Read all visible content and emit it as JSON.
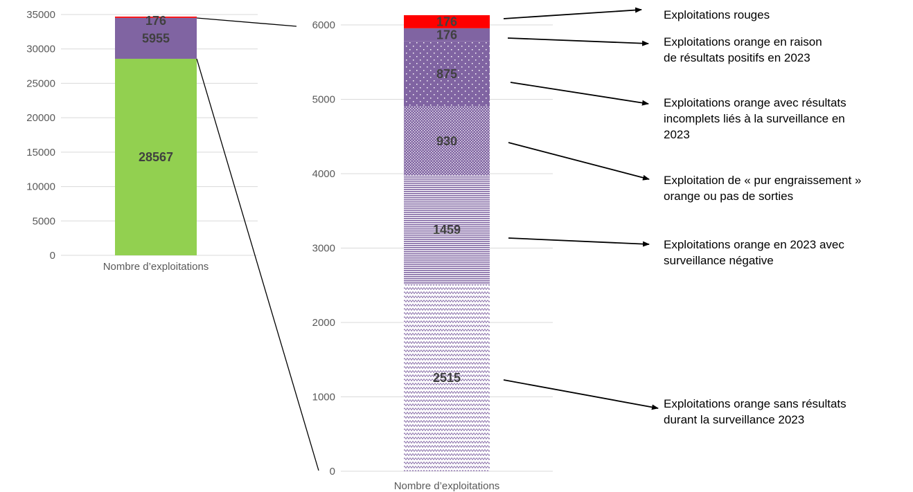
{
  "chart_data": [
    {
      "type": "bar",
      "stacked": true,
      "categories": [
        "Nombre d’exploitations"
      ],
      "ylim": [
        0,
        35000
      ],
      "yticks": [
        0,
        5000,
        10000,
        15000,
        20000,
        25000,
        30000,
        35000
      ],
      "grid": true,
      "series": [
        {
          "values": [
            28567
          ],
          "label": "28567",
          "color": "#92d050",
          "pattern": "solid"
        },
        {
          "values": [
            5955
          ],
          "label": "5955",
          "color": "#8064a2",
          "pattern": "solid"
        },
        {
          "values": [
            176
          ],
          "label": "176",
          "color": "#ff0000",
          "pattern": "solid"
        }
      ]
    },
    {
      "type": "bar",
      "stacked": true,
      "categories": [
        "Nombre d’exploitations"
      ],
      "ylim": [
        0,
        6000
      ],
      "yticks": [
        0,
        1000,
        2000,
        3000,
        4000,
        5000,
        6000
      ],
      "grid": true,
      "series": [
        {
          "values": [
            2515
          ],
          "label": "2515",
          "color": "#8064a2",
          "pattern": "wave",
          "annotation": [
            "Exploitations orange sans résultats",
            "durant la surveillance 2023"
          ]
        },
        {
          "values": [
            1459
          ],
          "label": "1459",
          "color": "#8064a2",
          "pattern": "hlines",
          "annotation": [
            "Exploitations orange en 2023 avec",
            "surveillance négative"
          ]
        },
        {
          "values": [
            930
          ],
          "label": "930",
          "color": "#8064a2",
          "pattern": "dense-dots",
          "annotation": [
            "Exploitation de « pur engraissement »",
            "orange ou pas de sorties"
          ]
        },
        {
          "values": [
            875
          ],
          "label": "875",
          "color": "#8064a2",
          "pattern": "sparse-dots",
          "annotation": [
            "Exploitations orange avec résultats",
            "incomplets liés à la surveillance en",
            "2023"
          ]
        },
        {
          "values": [
            176
          ],
          "label": "176",
          "color": "#8064a2",
          "pattern": "solid",
          "annotation": [
            "Exploitations orange en raison",
            "de résultats positifs en 2023"
          ]
        },
        {
          "values": [
            176
          ],
          "label": "176",
          "color": "#ff0000",
          "pattern": "solid",
          "annotation": [
            "Exploitations rouges"
          ]
        }
      ]
    }
  ]
}
